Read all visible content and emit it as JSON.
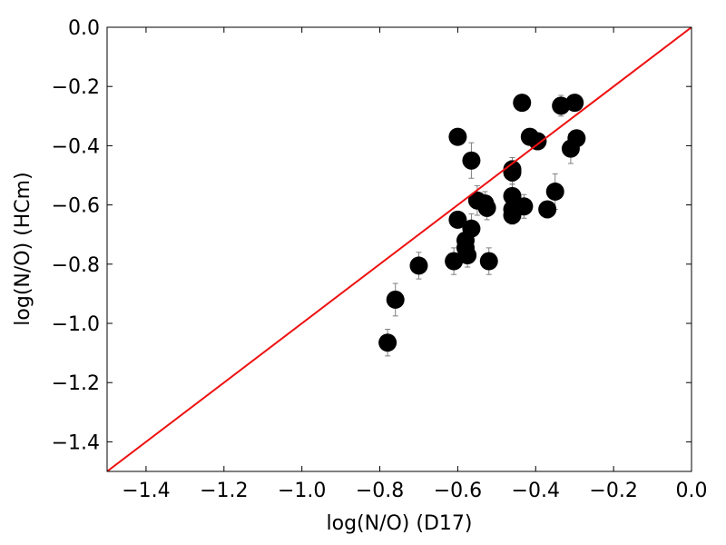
{
  "chart_data": {
    "type": "scatter",
    "xlabel": "log(N/O) (D17)",
    "ylabel": "log(N/O) (HCm)",
    "xlim": [
      -1.5,
      0.0
    ],
    "ylim": [
      -1.5,
      0.0
    ],
    "xticks": [
      "−1.4",
      "−1.2",
      "−1.0",
      "−0.8",
      "−0.6",
      "−0.4",
      "−0.2",
      "0.0"
    ],
    "xtick_values": [
      -1.4,
      -1.2,
      -1.0,
      -0.8,
      -0.6,
      -0.4,
      -0.2,
      0.0
    ],
    "yticks": [
      "0.0",
      "−0.2",
      "−0.4",
      "−0.6",
      "−0.8",
      "−1.0",
      "−1.2",
      "−1.4"
    ],
    "ytick_values": [
      0.0,
      -0.2,
      -0.4,
      -0.6,
      -0.8,
      -1.0,
      -1.2,
      -1.4
    ],
    "grid": false,
    "marker_color": "#000000",
    "errorbar_color": "#808080",
    "line_color": "#ee1111",
    "reference_line": {
      "x": [
        -1.5,
        0.0
      ],
      "y": [
        -1.5,
        0.0
      ]
    },
    "points": [
      {
        "x": -0.78,
        "y": -1.065,
        "err": 0.045
      },
      {
        "x": -0.76,
        "y": -0.92,
        "err": 0.055
      },
      {
        "x": -0.7,
        "y": -0.805,
        "err": 0.045
      },
      {
        "x": -0.61,
        "y": -0.79,
        "err": 0.045
      },
      {
        "x": -0.6,
        "y": -0.37,
        "err": 0.0
      },
      {
        "x": -0.6,
        "y": -0.65,
        "err": 0.0
      },
      {
        "x": -0.58,
        "y": -0.72,
        "err": 0.04
      },
      {
        "x": -0.58,
        "y": -0.745,
        "err": 0.04
      },
      {
        "x": -0.575,
        "y": -0.77,
        "err": 0.04
      },
      {
        "x": -0.565,
        "y": -0.68,
        "err": 0.05
      },
      {
        "x": -0.565,
        "y": -0.45,
        "err": 0.06
      },
      {
        "x": -0.55,
        "y": -0.585,
        "err": 0.05
      },
      {
        "x": -0.53,
        "y": -0.595,
        "err": 0.04
      },
      {
        "x": -0.525,
        "y": -0.61,
        "err": 0.04
      },
      {
        "x": -0.52,
        "y": -0.79,
        "err": 0.045
      },
      {
        "x": -0.46,
        "y": -0.48,
        "err": 0.04
      },
      {
        "x": -0.46,
        "y": -0.49,
        "err": 0.04
      },
      {
        "x": -0.46,
        "y": -0.57,
        "err": 0.04
      },
      {
        "x": -0.46,
        "y": -0.615,
        "err": 0.03
      },
      {
        "x": -0.46,
        "y": -0.635,
        "err": 0.03
      },
      {
        "x": -0.435,
        "y": -0.255,
        "err": 0.0
      },
      {
        "x": -0.43,
        "y": -0.605,
        "err": 0.04
      },
      {
        "x": -0.415,
        "y": -0.37,
        "err": 0.0
      },
      {
        "x": -0.395,
        "y": -0.385,
        "err": 0.0
      },
      {
        "x": -0.37,
        "y": -0.615,
        "err": 0.0
      },
      {
        "x": -0.35,
        "y": -0.555,
        "err": 0.06
      },
      {
        "x": -0.335,
        "y": -0.265,
        "err": 0.035
      },
      {
        "x": -0.31,
        "y": -0.41,
        "err": 0.05
      },
      {
        "x": -0.3,
        "y": -0.255,
        "err": 0.0
      },
      {
        "x": -0.295,
        "y": -0.375,
        "err": 0.0
      }
    ]
  }
}
